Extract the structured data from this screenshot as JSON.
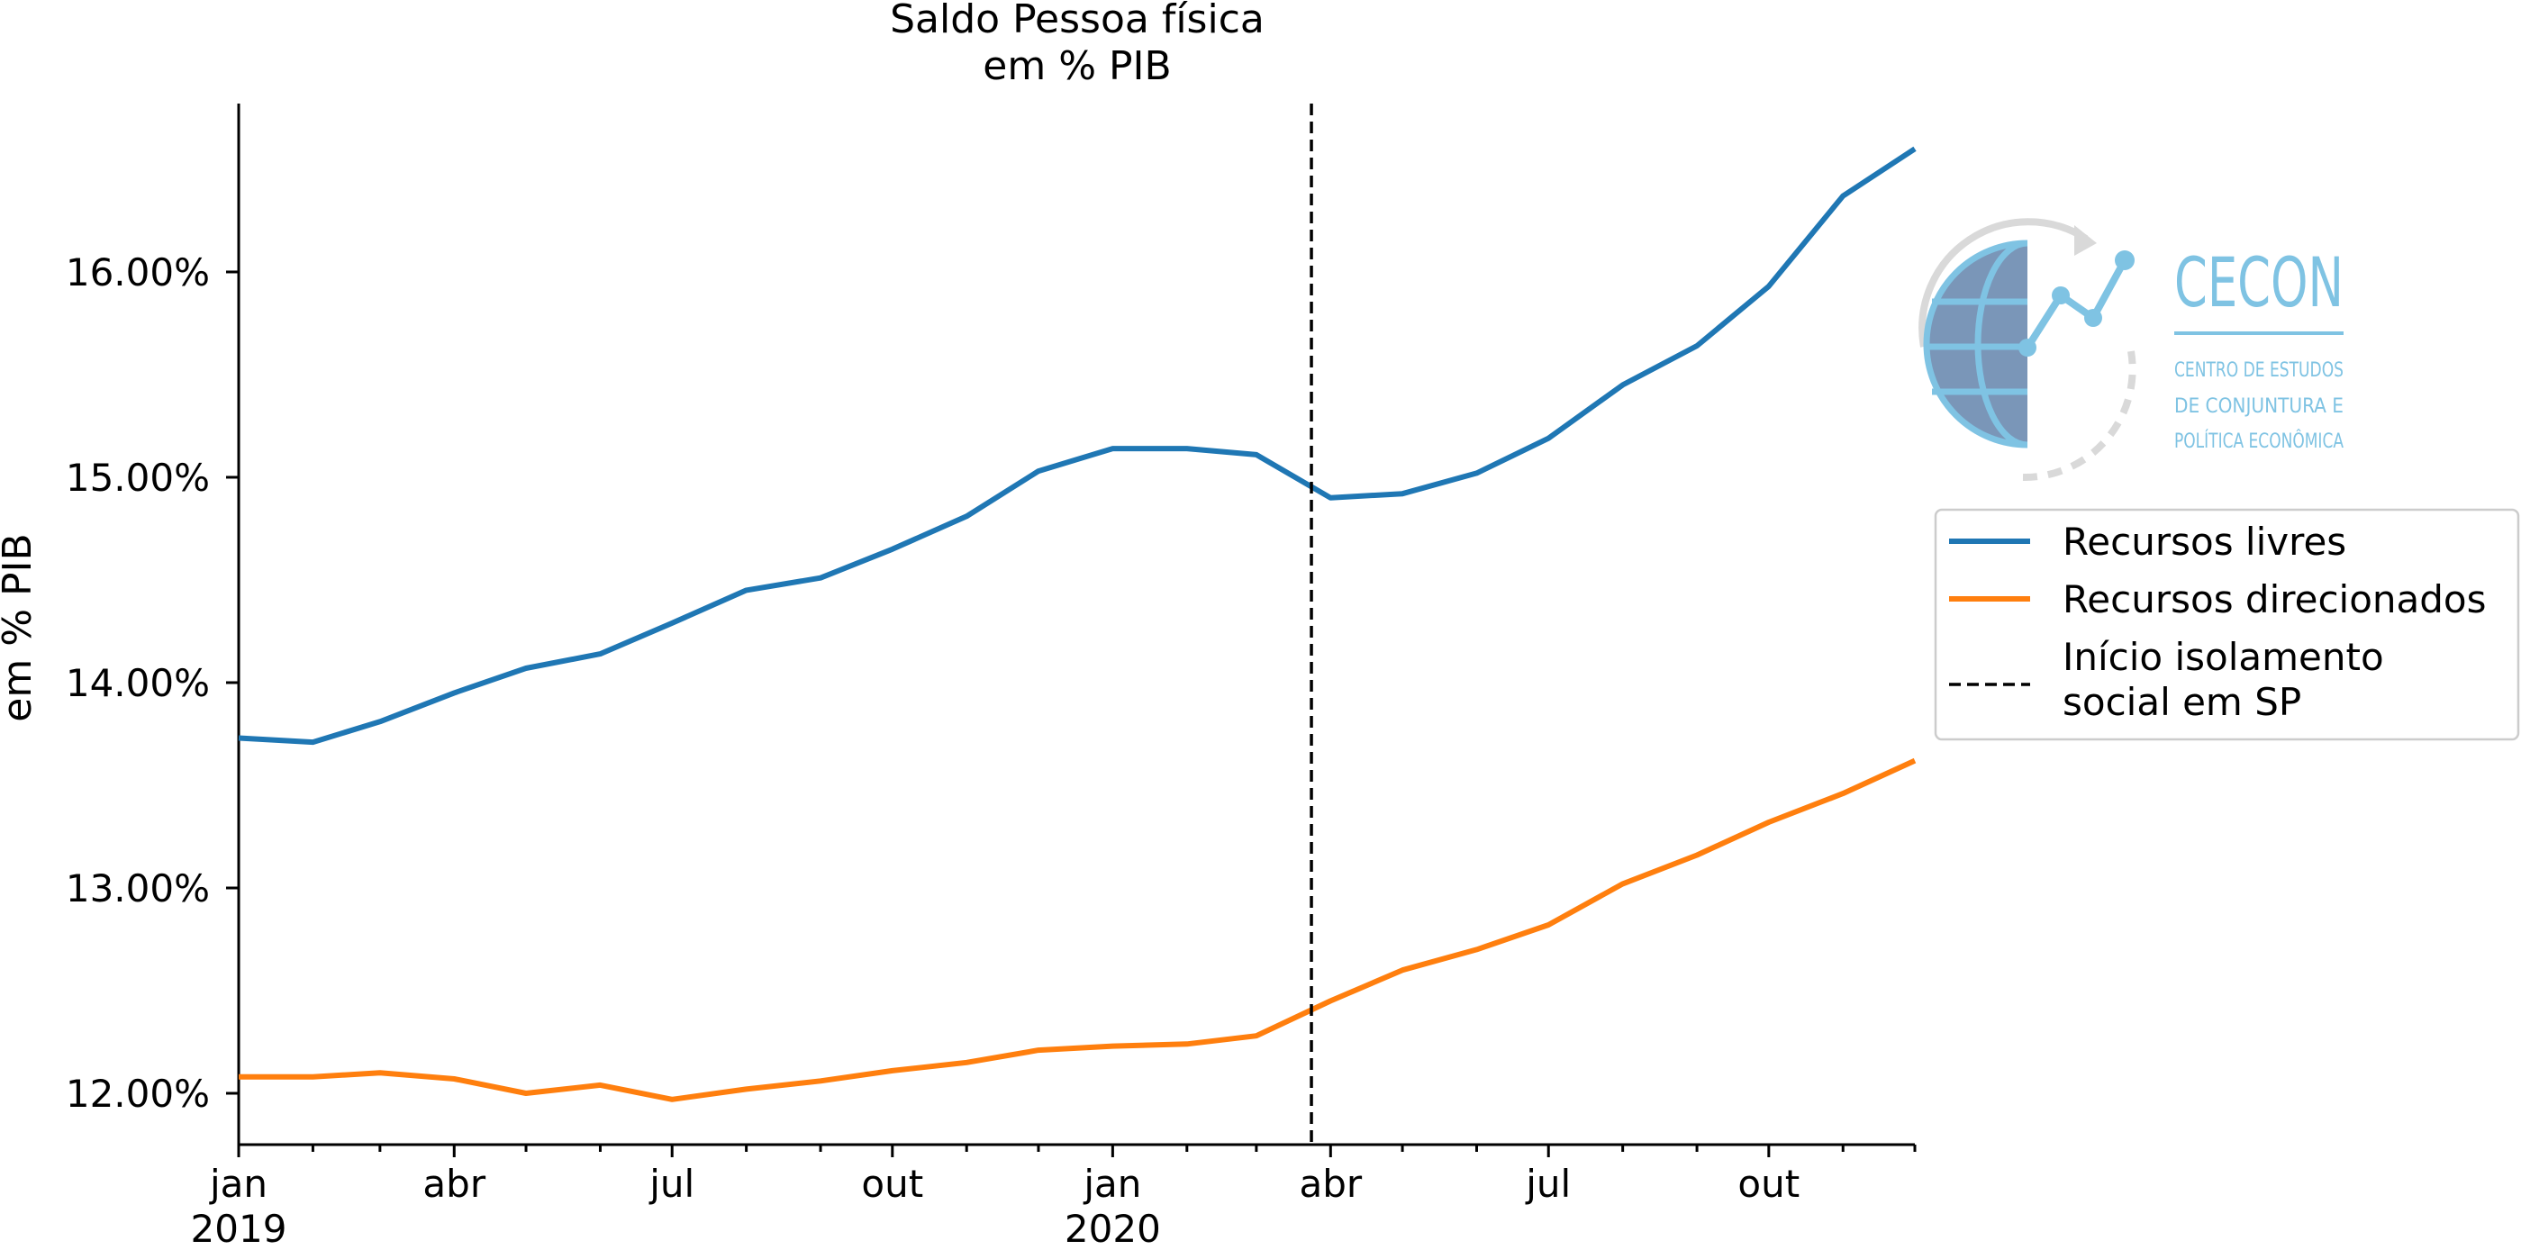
{
  "chart_data": {
    "type": "line",
    "title": "Saldo Pessoa física",
    "subtitle": "em % PIB",
    "xlabel": "",
    "ylabel": "em % PIB",
    "x": [
      "2019-01",
      "2019-02",
      "2019-03",
      "2019-04",
      "2019-05",
      "2019-06",
      "2019-07",
      "2019-08",
      "2019-09",
      "2019-10",
      "2019-11",
      "2019-12",
      "2020-01",
      "2020-02",
      "2020-03",
      "2020-04",
      "2020-05",
      "2020-06",
      "2020-07",
      "2020-08",
      "2020-09",
      "2020-10",
      "2020-11",
      "2020-12"
    ],
    "series": [
      {
        "name": "Recursos livres",
        "color": "#1f77b4",
        "values": [
          13.73,
          13.71,
          13.81,
          13.95,
          14.07,
          14.14,
          14.29,
          14.45,
          14.51,
          14.65,
          14.81,
          15.03,
          15.14,
          15.14,
          15.11,
          14.9,
          14.92,
          15.02,
          15.19,
          15.45,
          15.64,
          15.93,
          16.37,
          16.6
        ]
      },
      {
        "name": "Recursos direcionados",
        "color": "#ff7f0e",
        "values": [
          12.08,
          12.08,
          12.1,
          12.07,
          12.0,
          12.04,
          11.97,
          12.02,
          12.06,
          12.11,
          12.15,
          12.21,
          12.23,
          12.24,
          12.28,
          12.45,
          12.6,
          12.7,
          12.82,
          13.02,
          13.16,
          13.32,
          13.46,
          13.62
        ]
      }
    ],
    "vline": {
      "x": "2020-03-24",
      "label": "Início isolamento social em SP",
      "label_lines": [
        "Início isolamento",
        "social em SP"
      ],
      "style": "dashed",
      "color": "#000000"
    },
    "xlim": [
      "2019-01-01",
      "2020-12-01"
    ],
    "ylim": [
      11.75,
      16.82
    ],
    "yticks": [
      12,
      13,
      14,
      15,
      16
    ],
    "ytick_labels": [
      "12.00%",
      "13.00%",
      "14.00%",
      "15.00%",
      "16.00%"
    ],
    "xticks": [
      {
        "date": "2019-01-01",
        "label": "jan",
        "year": "2019"
      },
      {
        "date": "2019-04-01",
        "label": "abr",
        "year": ""
      },
      {
        "date": "2019-07-01",
        "label": "jul",
        "year": ""
      },
      {
        "date": "2019-10-01",
        "label": "out",
        "year": ""
      },
      {
        "date": "2020-01-01",
        "label": "jan",
        "year": "2020"
      },
      {
        "date": "2020-04-01",
        "label": "abr",
        "year": ""
      },
      {
        "date": "2020-07-01",
        "label": "jul",
        "year": ""
      },
      {
        "date": "2020-10-01",
        "label": "out",
        "year": ""
      }
    ],
    "grid": false,
    "legend": "right"
  },
  "logo": {
    "name": "CECON",
    "lines": [
      "CENTRO DE ESTUDOS",
      "DE CONJUNTURA E",
      "POLÍTICA ECONÔMICA"
    ],
    "colors": {
      "accent": "#7fc3e3",
      "globe": "#7a96b8",
      "ring": "#d9d9d9"
    }
  }
}
